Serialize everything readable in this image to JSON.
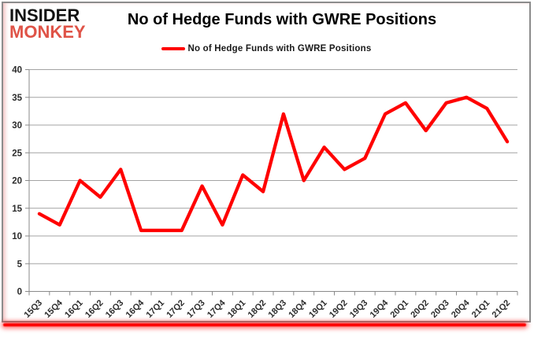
{
  "logo": {
    "line1": "INSIDER",
    "line2": "MONKEY"
  },
  "header": {
    "title": "No of Hedge Funds with GWRE Positions"
  },
  "legend": {
    "label": "No of Hedge Funds with GWRE Positions",
    "color": "#ff0000"
  },
  "chart_data": {
    "type": "line",
    "title": "No of Hedge Funds with GWRE Positions",
    "xlabel": "",
    "ylabel": "",
    "categories": [
      "15Q3",
      "15Q4",
      "16Q1",
      "16Q2",
      "16Q3",
      "16Q4",
      "17Q1",
      "17Q2",
      "17Q3",
      "17Q4",
      "18Q1",
      "18Q2",
      "18Q3",
      "18Q4",
      "19Q1",
      "19Q2",
      "19Q3",
      "19Q4",
      "20Q1",
      "20Q2",
      "20Q3",
      "20Q4",
      "21Q1",
      "21Q2"
    ],
    "series": [
      {
        "name": "No of Hedge Funds with GWRE Positions",
        "color": "#ff0000",
        "values": [
          14,
          12,
          20,
          17,
          22,
          11,
          11,
          11,
          19,
          12,
          21,
          18,
          32,
          20,
          26,
          22,
          24,
          32,
          34,
          29,
          34,
          35,
          33,
          27
        ]
      }
    ],
    "ylim": [
      0,
      40
    ],
    "ytick_step": 5,
    "grid": true,
    "legend_position": "top-center"
  },
  "colors": {
    "line_red": "#ff0000",
    "logo_red": "#df5347",
    "logo_black": "#121212",
    "gridline": "#a3a3a3",
    "axis": "#8a8a8a",
    "tick_text": "#2b2b2b",
    "frame_border": "#8c8c8c"
  }
}
